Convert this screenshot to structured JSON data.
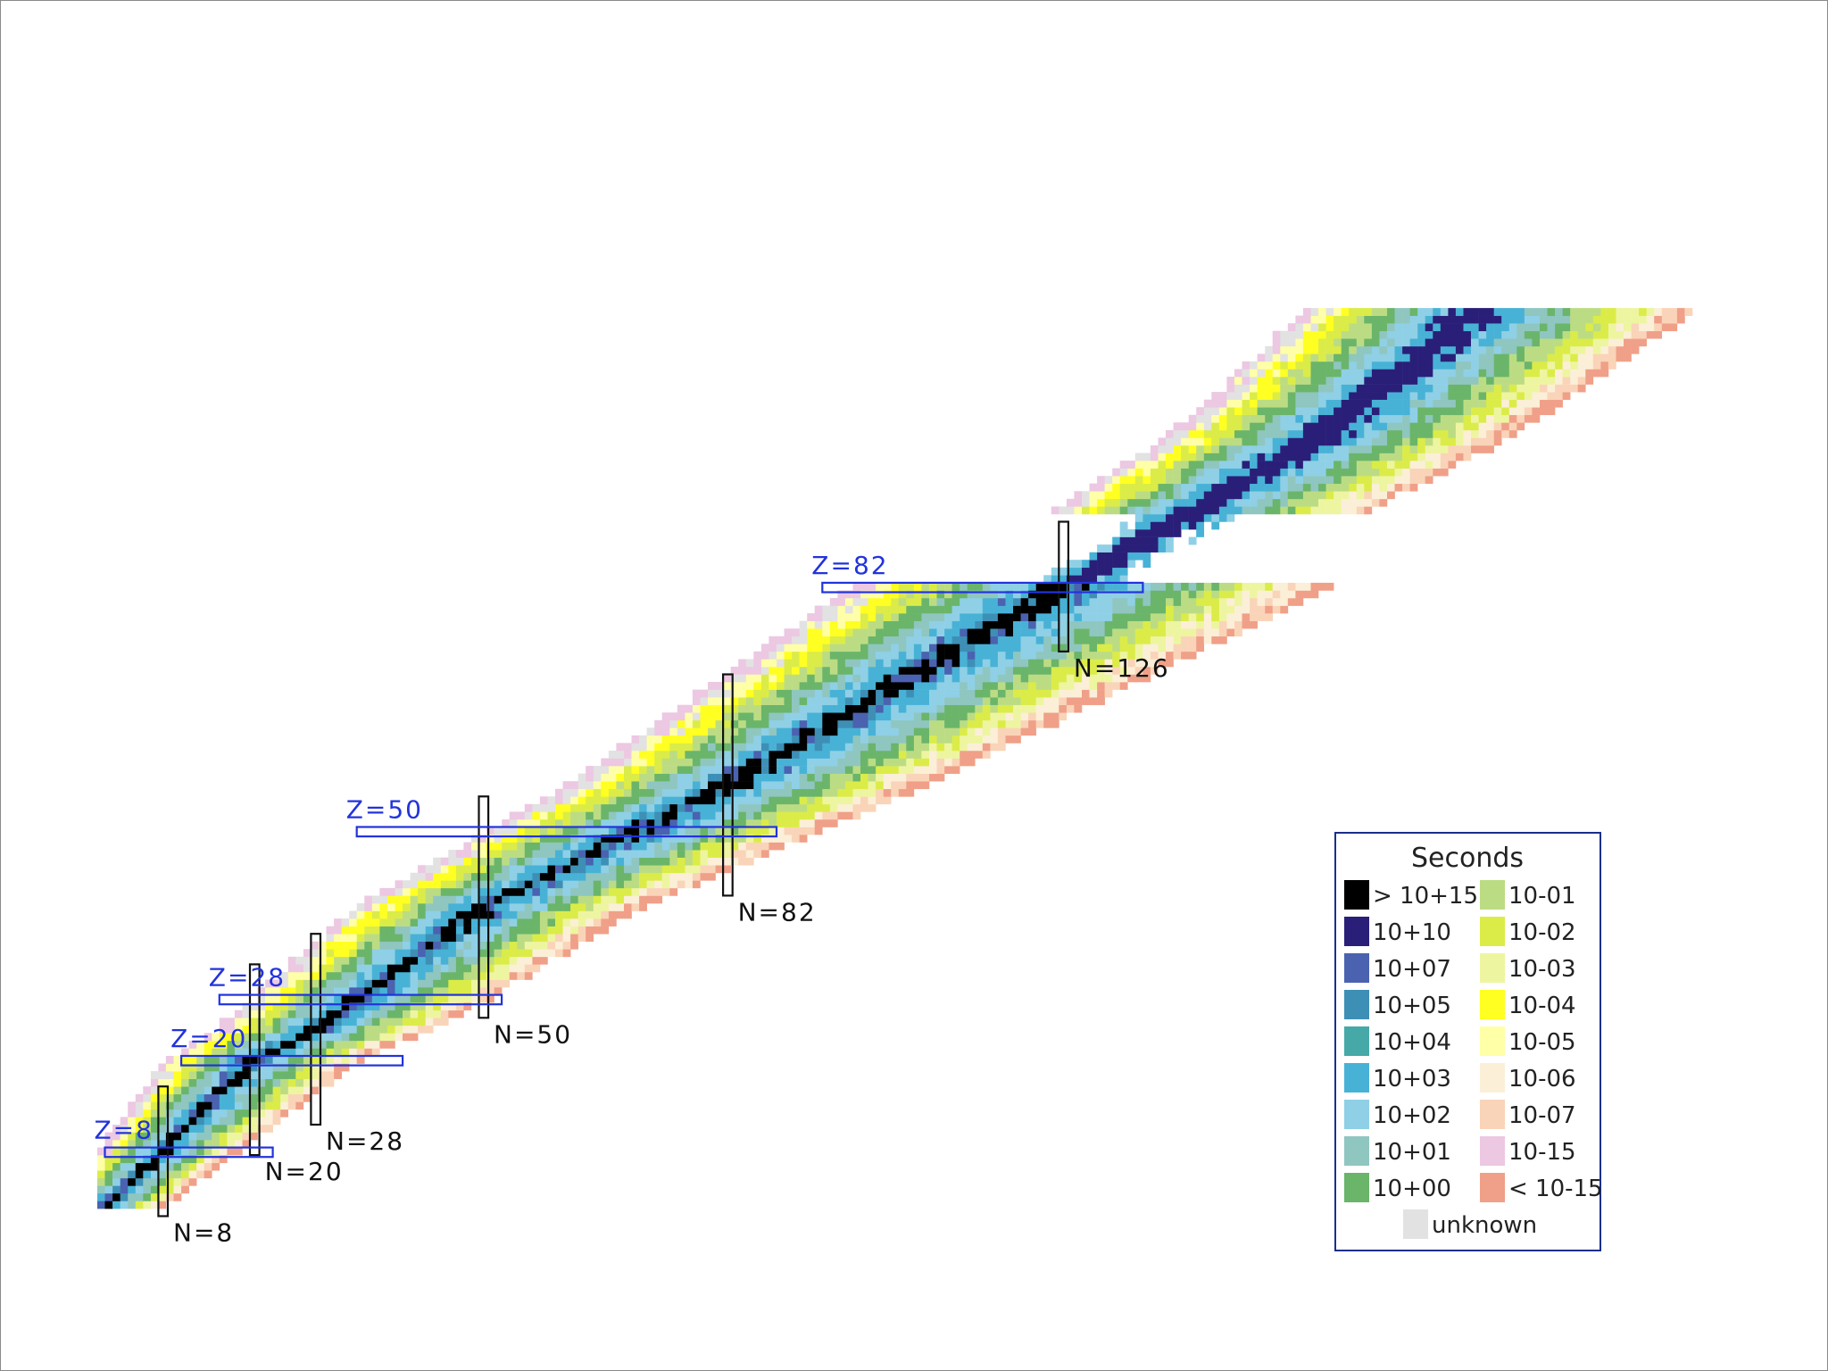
{
  "chart_data": {
    "type": "heatmap",
    "title": "",
    "xlabel": "",
    "ylabel": "",
    "x": "N",
    "y": "Z",
    "grid": false,
    "legend_placement": "bottom-right",
    "magic_numbers": {
      "N": [
        8,
        20,
        28,
        50,
        82,
        126
      ],
      "Z": [
        8,
        20,
        28,
        50,
        82
      ]
    },
    "neutron_labels": [
      "N=8",
      "N=20",
      "N=28",
      "N=50",
      "N=82",
      "N=126"
    ],
    "proton_labels": [
      "Z=8",
      "Z=20",
      "Z=28",
      "Z=50",
      "Z=82"
    ],
    "legend": {
      "title": "Seconds",
      "entries": [
        {
          "label": "> 10+15",
          "color": "#000000"
        },
        {
          "label": "10+10",
          "color": "#2a1f78"
        },
        {
          "label": "10+07",
          "color": "#4a62b0"
        },
        {
          "label": "10+05",
          "color": "#3e8fb6"
        },
        {
          "label": "10+04",
          "color": "#46a9a8"
        },
        {
          "label": "10+03",
          "color": "#48b2d6"
        },
        {
          "label": "10+02",
          "color": "#8fd0e6"
        },
        {
          "label": "10+01",
          "color": "#8fc6c0"
        },
        {
          "label": "10+00",
          "color": "#6ab56a"
        },
        {
          "label": "10-01",
          "color": "#bcdc84"
        },
        {
          "label": "10-02",
          "color": "#dbec48"
        },
        {
          "label": "10-03",
          "color": "#eef5a0"
        },
        {
          "label": "10-04",
          "color": "#ffff22"
        },
        {
          "label": "10-05",
          "color": "#ffffa8"
        },
        {
          "label": "10-06",
          "color": "#fbefd8"
        },
        {
          "label": "10-07",
          "color": "#fad4b8"
        },
        {
          "label": "10-15",
          "color": "#ecc8e2"
        },
        {
          "label": "< 10-15",
          "color": "#f0a088"
        },
        {
          "label": "unknown",
          "color": "#e2e2e2"
        }
      ]
    }
  }
}
